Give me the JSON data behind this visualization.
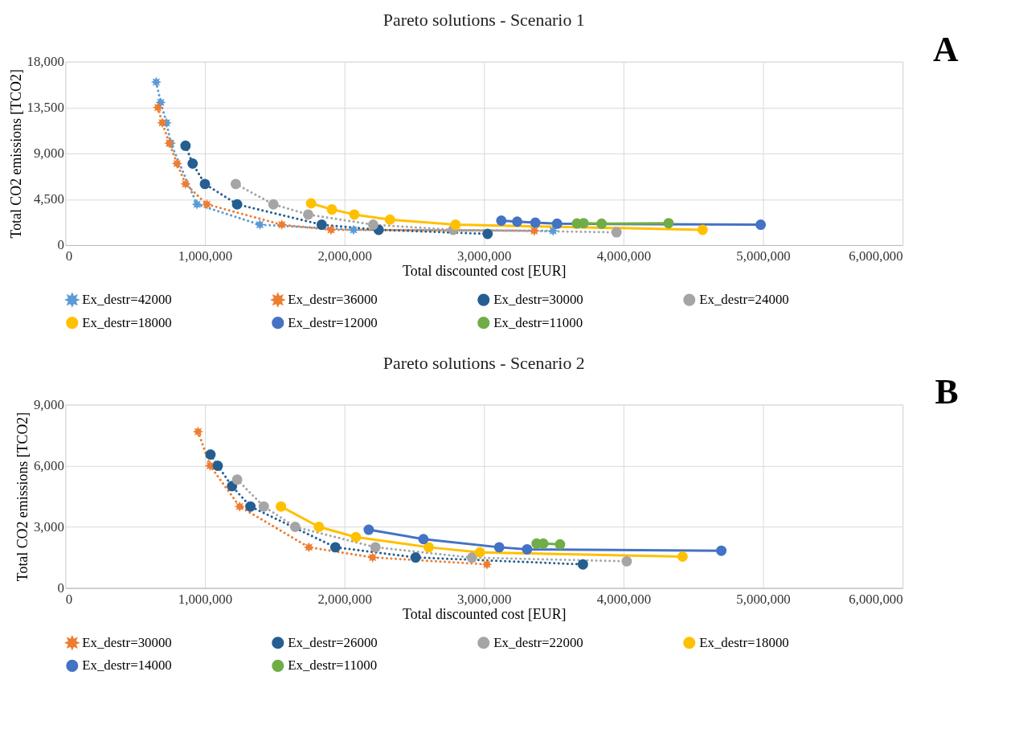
{
  "chart_data": [
    {
      "type": "line",
      "title": "Pareto solutions - Scenario 1",
      "xlabel": "Total discounted  cost [EUR]",
      "ylabel": "Total CO2 emissions [TCO2]",
      "annotations": [
        "A"
      ],
      "xlim": [
        0,
        6000000
      ],
      "xticks": [
        0,
        {
          "value": 1000000,
          "label": "1,000,000"
        },
        {
          "value": 2000000,
          "label": "2,000,000"
        },
        {
          "value": 3000000,
          "label": "3,000,000"
        },
        {
          "value": 4000000,
          "label": "4,000,000"
        },
        {
          "value": 5000000,
          "label": "5,000,000"
        },
        {
          "value": 6000000,
          "label": "6,000,000"
        }
      ],
      "ylim": [
        0,
        18000
      ],
      "yticks": [
        0,
        {
          "value": 4500,
          "label": "4,500"
        },
        {
          "value": 9000,
          "label": "9,000"
        },
        {
          "value": 13500,
          "label": "13,500"
        },
        {
          "value": 18000,
          "label": "18,000"
        }
      ],
      "grid": true,
      "legend": "bottom",
      "series": [
        {
          "name": "Ex_destr=42000",
          "color": "#5b9bd5",
          "marker": "star",
          "line_style": "dotted",
          "x": [
            651000,
            683000,
            725000,
            755000,
            800000,
            861000,
            943000,
            1394000,
            2065000,
            3495000
          ],
          "values": [
            16000,
            14000,
            12000,
            10000,
            null,
            null,
            4000,
            2000,
            1500,
            1400
          ]
        },
        {
          "name": "Ex_destr=36000",
          "color": "#ed7d31",
          "marker": "star",
          "line_style": "dotted",
          "x": [
            663000,
            694000,
            745000,
            800000,
            861000,
            1014000,
            1551000,
            1904000,
            3360000
          ],
          "values": [
            13500,
            12000,
            10000,
            8000,
            6000,
            4000,
            2000,
            1500,
            1400
          ]
        },
        {
          "name": "Ex_destr=30000",
          "color": "#255e91",
          "marker": "circle",
          "line_style": "dotted",
          "x": [
            861000,
            912000,
            1000000,
            1231000,
            1837000,
            2245000,
            3026000
          ],
          "values": [
            9750,
            8000,
            6000,
            4000,
            2000,
            1500,
            1100
          ]
        },
        {
          "name": "Ex_destr=24000",
          "color": "#a5a5a5",
          "marker": "circle",
          "line_style": "dotted",
          "x": [
            1221000,
            1491000,
            1740000,
            2206000,
            2779000,
            3950000
          ],
          "values": [
            6000,
            4000,
            3000,
            2000,
            1500,
            1250
          ]
        },
        {
          "name": "Ex_destr=18000",
          "color": "#ffc000",
          "marker": "circle",
          "line_style": "solid",
          "x": [
            1761000,
            1910000,
            2071000,
            2326000,
            2796000,
            4567000
          ],
          "values": [
            4100,
            3500,
            3000,
            2500,
            2000,
            1500
          ]
        },
        {
          "name": "Ex_destr=12000",
          "color": "#4472c4",
          "marker": "circle",
          "line_style": "solid",
          "x": [
            3124000,
            3238000,
            3368000,
            3524000,
            3660000,
            4983000
          ],
          "values": [
            2400,
            2300,
            2200,
            2100,
            null,
            2000
          ]
        },
        {
          "name": "Ex_destr=11000",
          "color": "#70ad47",
          "marker": "circle",
          "line_style": "solid",
          "x": [
            3666000,
            3714000,
            3843000,
            4323000
          ],
          "values": [
            2120,
            2150,
            2100,
            2150
          ]
        }
      ]
    },
    {
      "type": "line",
      "title": "Pareto solutions - Scenario 2",
      "xlabel": "Total discounted  cost [EUR]",
      "ylabel": "Total CO2 emissions [TCO2]",
      "annotations": [
        "B"
      ],
      "xlim": [
        0,
        6000000
      ],
      "xticks": [
        0,
        {
          "value": 1000000,
          "label": "1,000,000"
        },
        {
          "value": 2000000,
          "label": "2,000,000"
        },
        {
          "value": 3000000,
          "label": "3,000,000"
        },
        {
          "value": 4000000,
          "label": "4,000,000"
        },
        {
          "value": 5000000,
          "label": "5,000,000"
        },
        {
          "value": 6000000,
          "label": "6,000,000"
        }
      ],
      "ylim": [
        0,
        9000
      ],
      "yticks": [
        0,
        {
          "value": 3000,
          "label": "3,000"
        },
        {
          "value": 6000,
          "label": "6,000"
        },
        {
          "value": 9000,
          "label": "9,000"
        }
      ],
      "grid": true,
      "legend": "bottom",
      "series": [
        {
          "name": "Ex_destr=30000",
          "color": "#ed7d31",
          "marker": "star",
          "line_style": "dotted",
          "x": [
            951000,
            1037000,
            1249000,
            1745000,
            2202000,
            3021000
          ],
          "values": [
            7670,
            6000,
            4000,
            2000,
            1500,
            1160
          ]
        },
        {
          "name": "Ex_destr=26000",
          "color": "#255e91",
          "marker": "circle",
          "line_style": "dotted",
          "x": [
            1040000,
            1092000,
            1194000,
            1326000,
            1935000,
            2510000,
            3709000
          ],
          "values": [
            6550,
            6000,
            5000,
            4000,
            2000,
            1500,
            1160
          ]
        },
        {
          "name": "Ex_destr=22000",
          "color": "#a5a5a5",
          "marker": "circle",
          "line_style": "dotted",
          "x": [
            1231000,
            1422000,
            1647000,
            2222000,
            2914000,
            4023000
          ],
          "values": [
            5320,
            4000,
            3000,
            2000,
            1490,
            1310
          ]
        },
        {
          "name": "Ex_destr=18000",
          "color": "#ffc000",
          "marker": "circle",
          "line_style": "solid",
          "x": [
            1545000,
            1817000,
            2082000,
            2604000,
            2971000,
            4423000
          ],
          "values": [
            4000,
            3000,
            2500,
            2000,
            1750,
            1540
          ]
        },
        {
          "name": "Ex_destr=14000",
          "color": "#4472c4",
          "marker": "circle",
          "line_style": "solid",
          "x": [
            2174000,
            2566000,
            3109000,
            3309000,
            4701000
          ],
          "values": [
            2860,
            2400,
            2000,
            1900,
            1830
          ]
        },
        {
          "name": "Ex_destr=11000",
          "color": "#70ad47",
          "marker": "circle",
          "line_style": "solid",
          "x": [
            3377000,
            3425000,
            3545000
          ],
          "values": [
            2180,
            2180,
            2140
          ]
        }
      ]
    }
  ]
}
